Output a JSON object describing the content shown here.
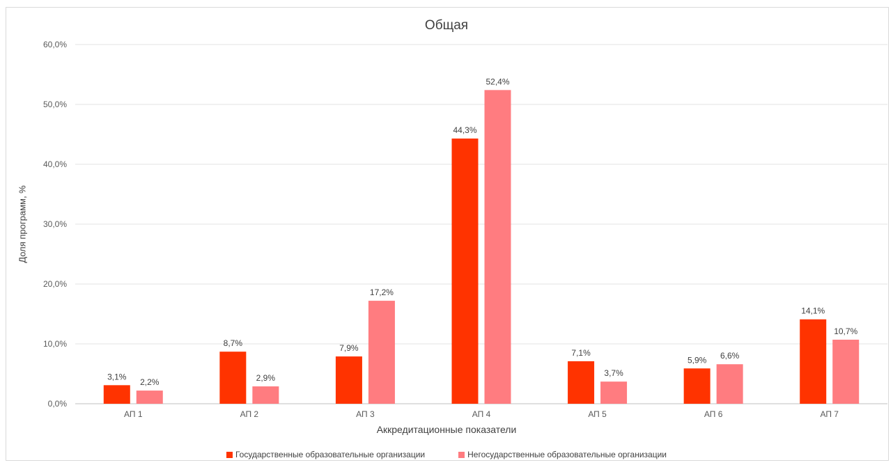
{
  "chart_data": {
    "type": "bar",
    "title": "Общая",
    "xlabel": "Аккредитационные показатели",
    "ylabel": "Доля программ, %",
    "categories": [
      "АП 1",
      "АП 2",
      "АП 3",
      "АП 4",
      "АП 5",
      "АП 6",
      "АП 7"
    ],
    "series": [
      {
        "name": "Государственные образовательные организации",
        "color": "#ff3300",
        "values": [
          3.1,
          8.7,
          7.9,
          44.3,
          7.1,
          5.9,
          14.1
        ],
        "labels": [
          "3,1%",
          "8,7%",
          "7,9%",
          "44,3%",
          "7,1%",
          "5,9%",
          "14,1%"
        ]
      },
      {
        "name": "Негосударственные образовательные организации",
        "color": "#ff7c80",
        "values": [
          2.2,
          2.9,
          17.2,
          52.4,
          3.7,
          6.6,
          10.7
        ],
        "labels": [
          "2,2%",
          "2,9%",
          "17,2%",
          "52,4%",
          "3,7%",
          "6,6%",
          "10,7%"
        ]
      }
    ],
    "ylim": [
      0,
      60
    ],
    "yticks": [
      0,
      10,
      20,
      30,
      40,
      50,
      60
    ],
    "ytick_labels": [
      "0,0%",
      "10,0%",
      "20,0%",
      "30,0%",
      "40,0%",
      "50,0%",
      "60,0%"
    ],
    "grid": true,
    "legend_position": "bottom"
  }
}
